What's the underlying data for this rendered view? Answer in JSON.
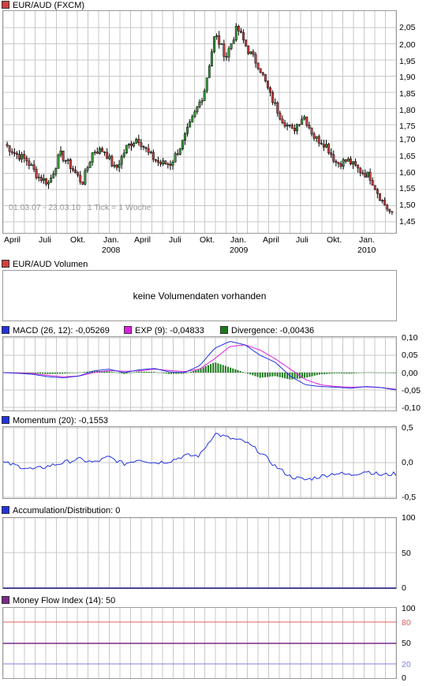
{
  "price": {
    "title": "EUR/AUD (FXCM)",
    "color": "#d04040",
    "info": "01.03.07 - 23.03.10   1 Tick = 1 Woche",
    "x_labels": [
      "April",
      "Juli",
      "Okt.",
      "Jan.",
      "April",
      "Juli",
      "Okt.",
      "Jan.",
      "April",
      "Juli",
      "Okt.",
      "Jan."
    ],
    "year_labels": [
      "2008",
      "2009",
      "2010"
    ],
    "y_ticks": [
      "2,05",
      "2,00",
      "1,95",
      "1,90",
      "1,85",
      "1,80",
      "1,75",
      "1,70",
      "1,65",
      "1,60",
      "1,55",
      "1,50",
      "1,45"
    ]
  },
  "volume": {
    "title": "EUR/AUD Volumen",
    "color": "#d04040",
    "message": "keine Volumendaten vorhanden"
  },
  "macd": {
    "legend": [
      {
        "label": "MACD (26, 12): -0,05269",
        "color": "#2233dd"
      },
      {
        "label": "EXP (9): -0,04833",
        "color": "#dd22dd"
      },
      {
        "label": "Divergence: -0,00436",
        "color": "#1a7a1a"
      }
    ],
    "y_ticks": [
      "0,10",
      "0,05",
      "0,00",
      "-0,05",
      "-0,10"
    ]
  },
  "momentum": {
    "title": "Momentum (20): -0,1553",
    "color": "#2233dd",
    "y_ticks": [
      "0,5",
      "0,0",
      "-0,5"
    ]
  },
  "ad": {
    "title": "Accumulation/Distribution: 0",
    "color": "#2233dd",
    "y_ticks": [
      "100",
      "50",
      "0"
    ]
  },
  "mfi": {
    "title": "Money Flow Index (14): 50",
    "color": "#7a2a8a",
    "y_ticks": [
      "100",
      "80",
      "50",
      "20",
      "0"
    ]
  },
  "chart_data": [
    {
      "type": "candlestick",
      "title": "EUR/AUD (FXCM)",
      "x_range": [
        "01.03.07",
        "23.03.10"
      ],
      "x_ticks": [
        "April",
        "Juli",
        "Okt.",
        "Jan. 2008",
        "April",
        "Juli",
        "Okt.",
        "Jan. 2009",
        "April",
        "Juli",
        "Okt.",
        "Jan. 2010"
      ],
      "ylim": [
        1.45,
        2.07
      ],
      "close_keypoints": {
        "x": [
          "2007-03",
          "2007-04",
          "2007-06",
          "2007-07",
          "2007-08",
          "2007-09",
          "2007-10",
          "2007-11",
          "2007-12",
          "2008-01",
          "2008-02",
          "2008-03",
          "2008-04",
          "2008-05",
          "2008-06",
          "2008-07",
          "2008-08",
          "2008-09",
          "2008-10",
          "2008-11",
          "2008-12",
          "2009-01",
          "2009-02",
          "2009-03",
          "2009-04",
          "2009-05",
          "2009-06",
          "2009-07",
          "2009-08",
          "2009-09",
          "2009-10",
          "2009-11",
          "2009-12",
          "2010-01",
          "2010-02",
          "2010-03"
        ],
        "y": [
          1.69,
          1.66,
          1.64,
          1.59,
          1.57,
          1.66,
          1.62,
          1.57,
          1.67,
          1.67,
          1.61,
          1.68,
          1.71,
          1.66,
          1.63,
          1.63,
          1.69,
          1.77,
          1.85,
          2.03,
          1.96,
          2.05,
          1.98,
          1.93,
          1.84,
          1.77,
          1.73,
          1.78,
          1.71,
          1.69,
          1.63,
          1.64,
          1.61,
          1.59,
          1.52,
          1.47
        ]
      }
    },
    {
      "type": "bar",
      "title": "EUR/AUD Volumen",
      "values": []
    },
    {
      "type": "line",
      "series": [
        {
          "name": "MACD (26, 12)",
          "last": -0.05269
        },
        {
          "name": "EXP (9)",
          "last": -0.04833
        },
        {
          "name": "Divergence",
          "last": -0.00436
        }
      ],
      "ylim": [
        -0.1,
        0.1
      ]
    },
    {
      "type": "line",
      "series": [
        {
          "name": "Momentum (20)",
          "last": -0.1553
        }
      ],
      "ylim": [
        -0.5,
        0.5
      ]
    },
    {
      "type": "line",
      "series": [
        {
          "name": "Accumulation/Distribution",
          "last": 0
        }
      ],
      "ylim": [
        0,
        100
      ]
    },
    {
      "type": "line",
      "series": [
        {
          "name": "Money Flow Index (14)",
          "last": 50
        }
      ],
      "ylim": [
        0,
        100
      ],
      "reference_lines": [
        80,
        50,
        20
      ]
    }
  ]
}
